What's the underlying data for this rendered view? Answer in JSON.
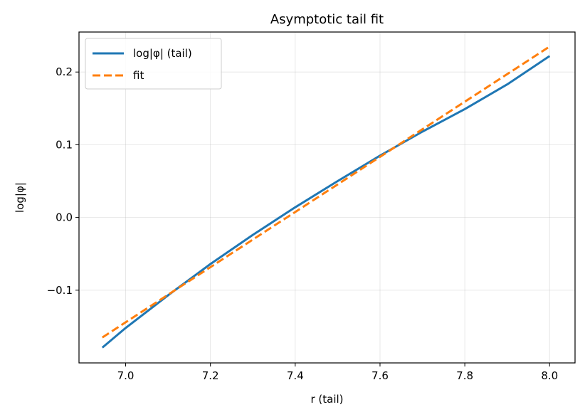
{
  "chart_data": {
    "type": "line",
    "title": "Asymptotic tail fit",
    "xlabel": "r (tail)",
    "ylabel": "log|φ|",
    "xlim": [
      6.89,
      8.06
    ],
    "ylim": [
      -0.2,
      0.255
    ],
    "grid": true,
    "legend_position": "upper-left",
    "x_ticks": [
      7.0,
      7.2,
      7.4,
      7.6,
      7.8,
      8.0
    ],
    "x_tick_labels": [
      "7.0",
      "7.2",
      "7.4",
      "7.6",
      "7.8",
      "8.0"
    ],
    "y_ticks": [
      -0.1,
      0.0,
      0.1,
      0.2
    ],
    "y_tick_labels": [
      "−0.1",
      "0.0",
      "0.1",
      "0.2"
    ],
    "series": [
      {
        "name": "log|φ| (tail)",
        "color": "#1f77b4",
        "style": "solid",
        "x": [
          6.945,
          7.0,
          7.1,
          7.2,
          7.3,
          7.4,
          7.5,
          7.6,
          7.7,
          7.8,
          7.9,
          8.0
        ],
        "y": [
          -0.179,
          -0.152,
          -0.107,
          -0.064,
          -0.024,
          0.014,
          0.05,
          0.085,
          0.118,
          0.149,
          0.183,
          0.222
        ]
      },
      {
        "name": "fit",
        "color": "#ff7f0e",
        "style": "dashed",
        "x": [
          6.945,
          8.0
        ],
        "y": [
          -0.165,
          0.235
        ]
      }
    ]
  }
}
